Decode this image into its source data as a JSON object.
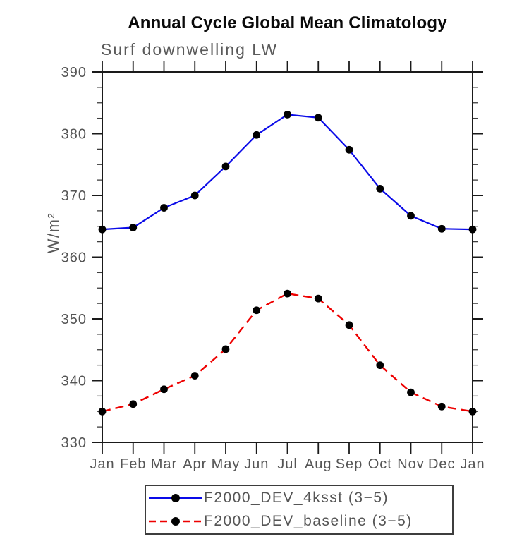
{
  "page": {
    "background": "#ffffff"
  },
  "chart_data": {
    "type": "line",
    "title": "Annual Cycle Global Mean Climatology",
    "subtitle": "Surf downwelling LW",
    "ylabel": "W/m²",
    "xlabel": "",
    "categories": [
      "Jan",
      "Feb",
      "Mar",
      "Apr",
      "May",
      "Jun",
      "Jul",
      "Aug",
      "Sep",
      "Oct",
      "Nov",
      "Dec",
      "Jan"
    ],
    "ylim": [
      330,
      390
    ],
    "ytick_step": 10,
    "yminor_step": 2.5,
    "grid": false,
    "legend_position": "bottom",
    "axis_color": "#1a1a1a",
    "text_color": "#555555",
    "series": [
      {
        "name": "F2000_DEV_4ksst",
        "legend_label": "F2000_DEV_4ksst (3−5)",
        "color": "#0a0ae8",
        "line_style": "solid",
        "line_width": 2.2,
        "marker": "circle",
        "marker_color": "#000000",
        "values": [
          364.5,
          364.8,
          368.0,
          370.0,
          374.7,
          379.8,
          383.1,
          382.6,
          377.4,
          371.1,
          366.7,
          364.6,
          364.5
        ]
      },
      {
        "name": "F2000_DEV_baseline",
        "legend_label": "F2000_DEV_baseline (3−5)",
        "color": "#ee0000",
        "line_style": "dashed",
        "line_width": 2.4,
        "marker": "circle",
        "marker_color": "#000000",
        "values": [
          335.0,
          336.2,
          338.6,
          340.8,
          345.1,
          351.4,
          354.1,
          353.3,
          349.0,
          342.5,
          338.1,
          335.8,
          335.0
        ]
      }
    ]
  }
}
